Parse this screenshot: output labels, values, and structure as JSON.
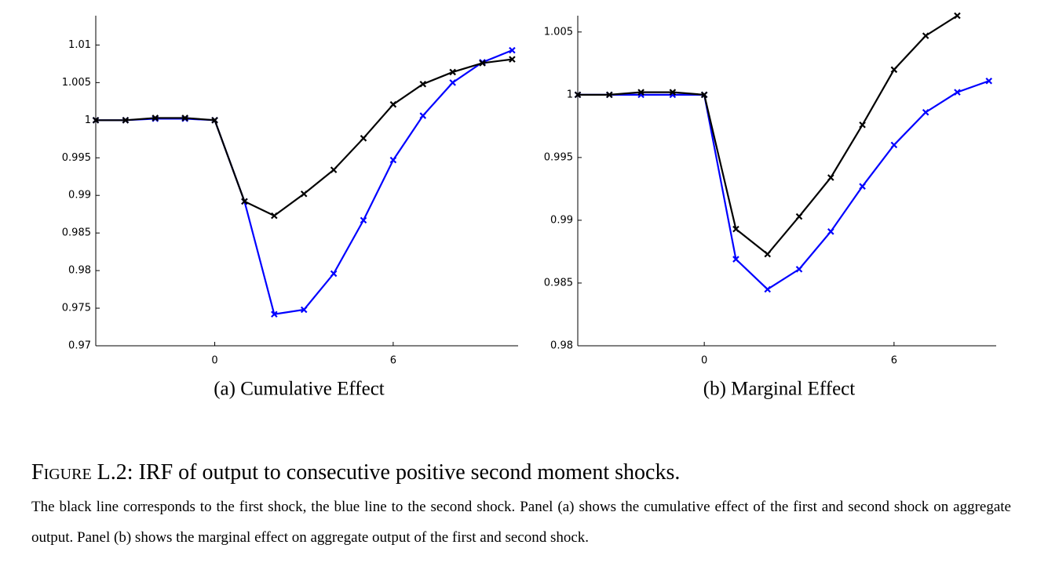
{
  "chart_data": [
    {
      "type": "line",
      "title": "(a) Cumulative Effect",
      "x": [
        -4,
        -3,
        -2,
        -1,
        0,
        1,
        2,
        3,
        4,
        5,
        6,
        7,
        8,
        9,
        10
      ],
      "series": [
        {
          "color": "#000000",
          "values": [
            1,
            1,
            1.0003,
            1.0003,
            1,
            0.9892,
            0.9873,
            0.9902,
            0.9934,
            0.9976,
            1.0021,
            1.0048,
            1.0064,
            1.0076,
            1.0081
          ]
        },
        {
          "color": "#0000ff",
          "values": [
            1,
            1,
            1.0002,
            1.0002,
            1,
            0.9892,
            0.9742,
            0.9748,
            0.9796,
            0.9867,
            0.9947,
            1.0006,
            1.005,
            1.0077,
            1.0093
          ]
        }
      ],
      "xlim": [
        -4,
        10.2
      ],
      "xticks": [
        0,
        6
      ],
      "ylim": [
        0.97,
        1.0139
      ],
      "yticks": [
        0.97,
        0.975,
        0.98,
        0.985,
        0.99,
        0.995,
        1,
        1.005,
        1.01
      ]
    },
    {
      "type": "line",
      "title": "(b) Marginal Effect",
      "x": [
        -4,
        -3,
        -2,
        -1,
        0,
        1,
        2,
        3,
        4,
        5,
        6,
        7,
        8,
        9
      ],
      "series": [
        {
          "color": "#000000",
          "values": [
            1,
            1,
            1.0002,
            1.0002,
            1,
            0.9893,
            0.9873,
            0.9903,
            0.9934,
            0.9976,
            1.002,
            1.0047,
            1.0063,
            null
          ]
        },
        {
          "color": "#0000ff",
          "values": [
            1,
            1,
            1,
            1,
            1,
            0.9869,
            0.9845,
            0.9861,
            0.9891,
            0.9927,
            0.996,
            0.9986,
            1.0002,
            1.0011
          ]
        }
      ],
      "xlim": [
        -4,
        9.23
      ],
      "xticks": [
        0,
        6
      ],
      "ylim": [
        0.98,
        1.0063
      ],
      "yticks": [
        0.98,
        0.985,
        0.99,
        0.995,
        1,
        1.005
      ]
    }
  ],
  "caption": {
    "label": "Figure L.2:",
    "title": "IRF of output to consecutive positive second moment shocks.",
    "text": "The black line corresponds to the first shock, the blue line to the second shock. Panel (a) shows the cumulative effect of the first and second shock on aggregate output. Panel (b) shows the marginal effect on aggregate output of the first and second shock."
  }
}
